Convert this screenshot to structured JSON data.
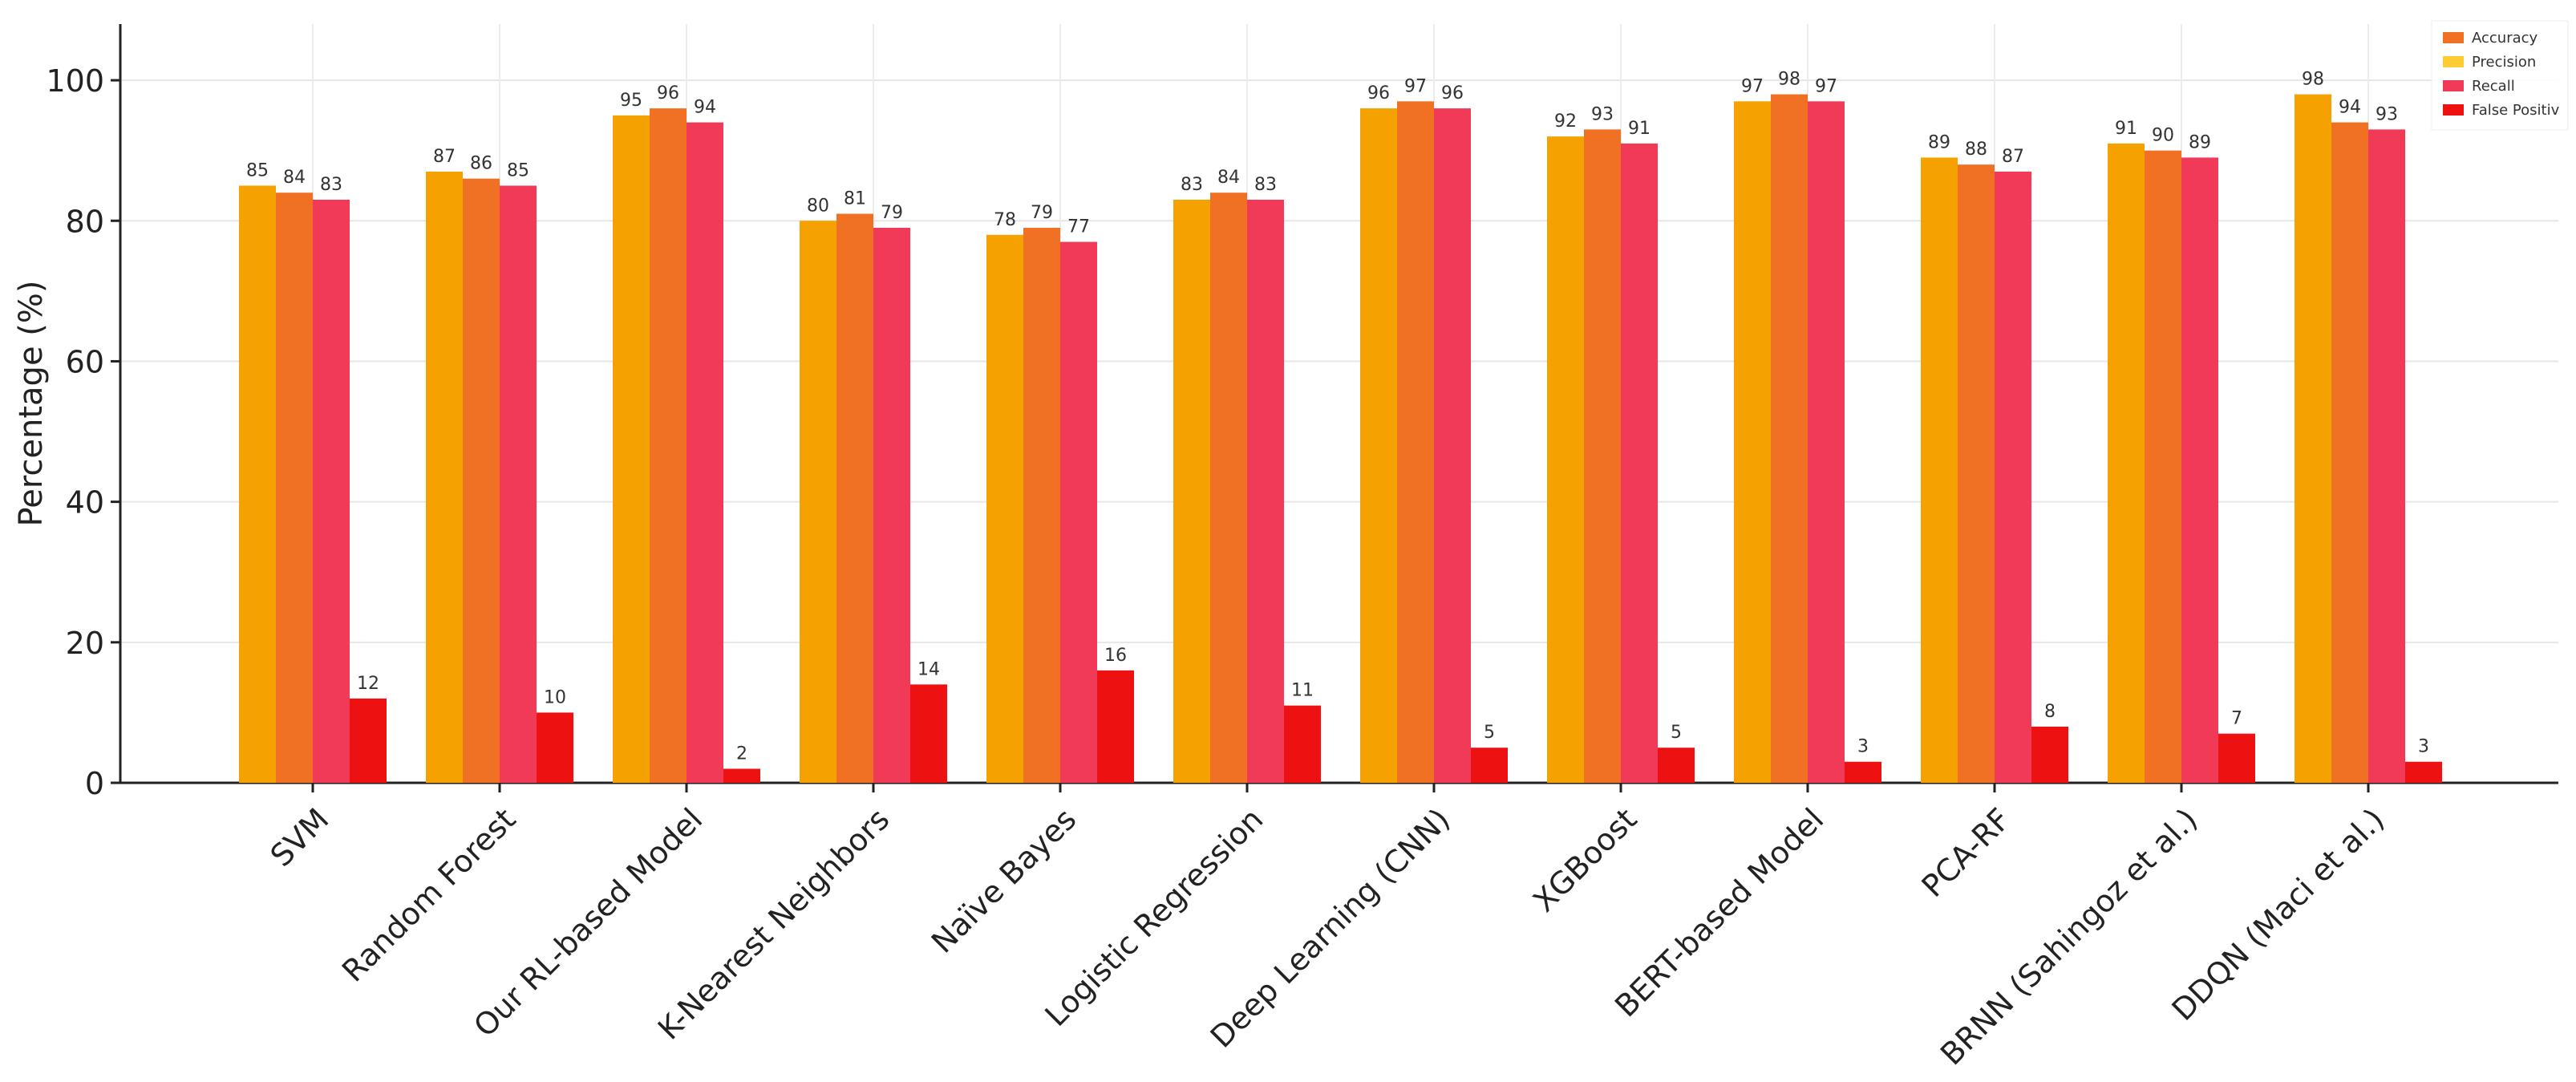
{
  "chart_data": {
    "type": "bar",
    "title": "",
    "xlabel": "",
    "ylabel": "Percentage (%)",
    "ylim": [
      0,
      108
    ],
    "yticks": [
      0,
      20,
      40,
      60,
      80,
      100
    ],
    "grid": true,
    "legend_position": "top-right",
    "categories": [
      "SVM",
      "Random Forest",
      "Our RL-based Model",
      "K-Nearest Neighbors",
      "Naïve Bayes",
      "Logistic Regression",
      "Deep Learning (CNN)",
      "XGBoost",
      "BERT-based Model",
      "PCA-RF",
      "BRNN (Sahingoz et al.)",
      "DDQN (Maci et al.)"
    ],
    "series": [
      {
        "name": "Accuracy",
        "color": "#f5a200",
        "values": [
          85,
          87,
          95,
          80,
          78,
          83,
          96,
          92,
          97,
          89,
          91,
          98
        ]
      },
      {
        "name": "Precision",
        "color": "#f07123",
        "values": [
          84,
          86,
          96,
          81,
          79,
          84,
          97,
          93,
          98,
          88,
          90,
          94
        ]
      },
      {
        "name": "Recall",
        "color": "#f03a58",
        "values": [
          83,
          85,
          94,
          79,
          77,
          83,
          96,
          91,
          97,
          87,
          89,
          93
        ]
      },
      {
        "name": "False Positiv",
        "color": "#ee1111",
        "values": [
          12,
          10,
          2,
          14,
          16,
          11,
          5,
          5,
          3,
          8,
          7,
          3
        ]
      }
    ],
    "legend_colors_shown": [
      "#f07123",
      "#ffcc33",
      "#f03a58",
      "#ee1111"
    ],
    "legend_order": [
      "Accuracy",
      "Precision",
      "Recall",
      "False Positiv"
    ]
  }
}
